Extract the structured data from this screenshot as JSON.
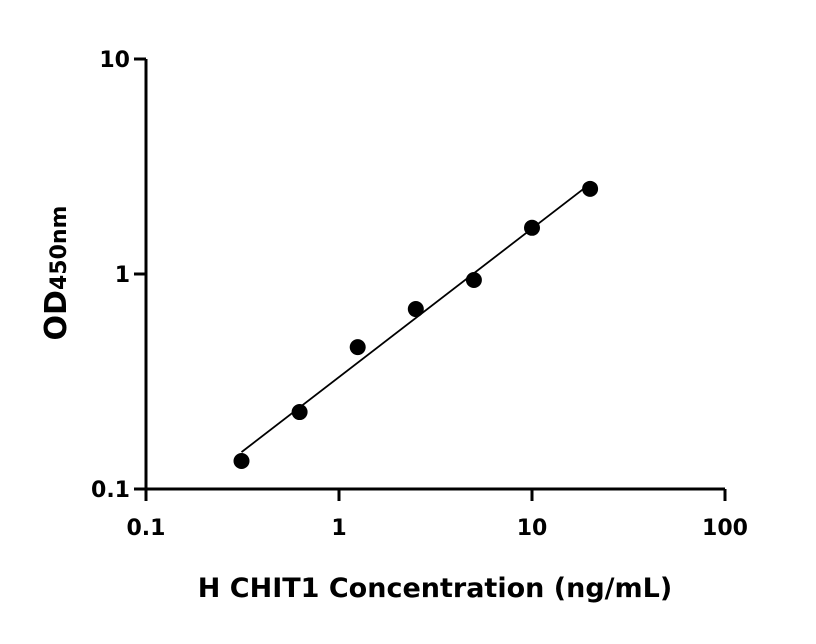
{
  "chart_data": {
    "type": "scatter",
    "title": "",
    "xlabel": "H CHIT1 Concentration (ng/mL)",
    "ylabel_main": "OD",
    "ylabel_sub": "450nm",
    "xscale": "log",
    "yscale": "log",
    "xlim": [
      0.1,
      100
    ],
    "ylim": [
      0.1,
      10
    ],
    "xticks": [
      0.1,
      1,
      10,
      100
    ],
    "xtick_labels": [
      "0.1",
      "1",
      "10",
      "100"
    ],
    "yticks": [
      0.1,
      1,
      10
    ],
    "ytick_labels": [
      "0.1",
      "1",
      "10"
    ],
    "grid": false,
    "fit_line": "log-log linear",
    "points": [
      {
        "x": 0.3125,
        "y": 0.135
      },
      {
        "x": 0.625,
        "y": 0.228
      },
      {
        "x": 1.25,
        "y": 0.457
      },
      {
        "x": 2.5,
        "y": 0.687
      },
      {
        "x": 5,
        "y": 0.938
      },
      {
        "x": 10,
        "y": 1.64
      },
      {
        "x": 20,
        "y": 2.49
      }
    ],
    "colors": {
      "marker": "#000000",
      "line": "#000000"
    }
  }
}
